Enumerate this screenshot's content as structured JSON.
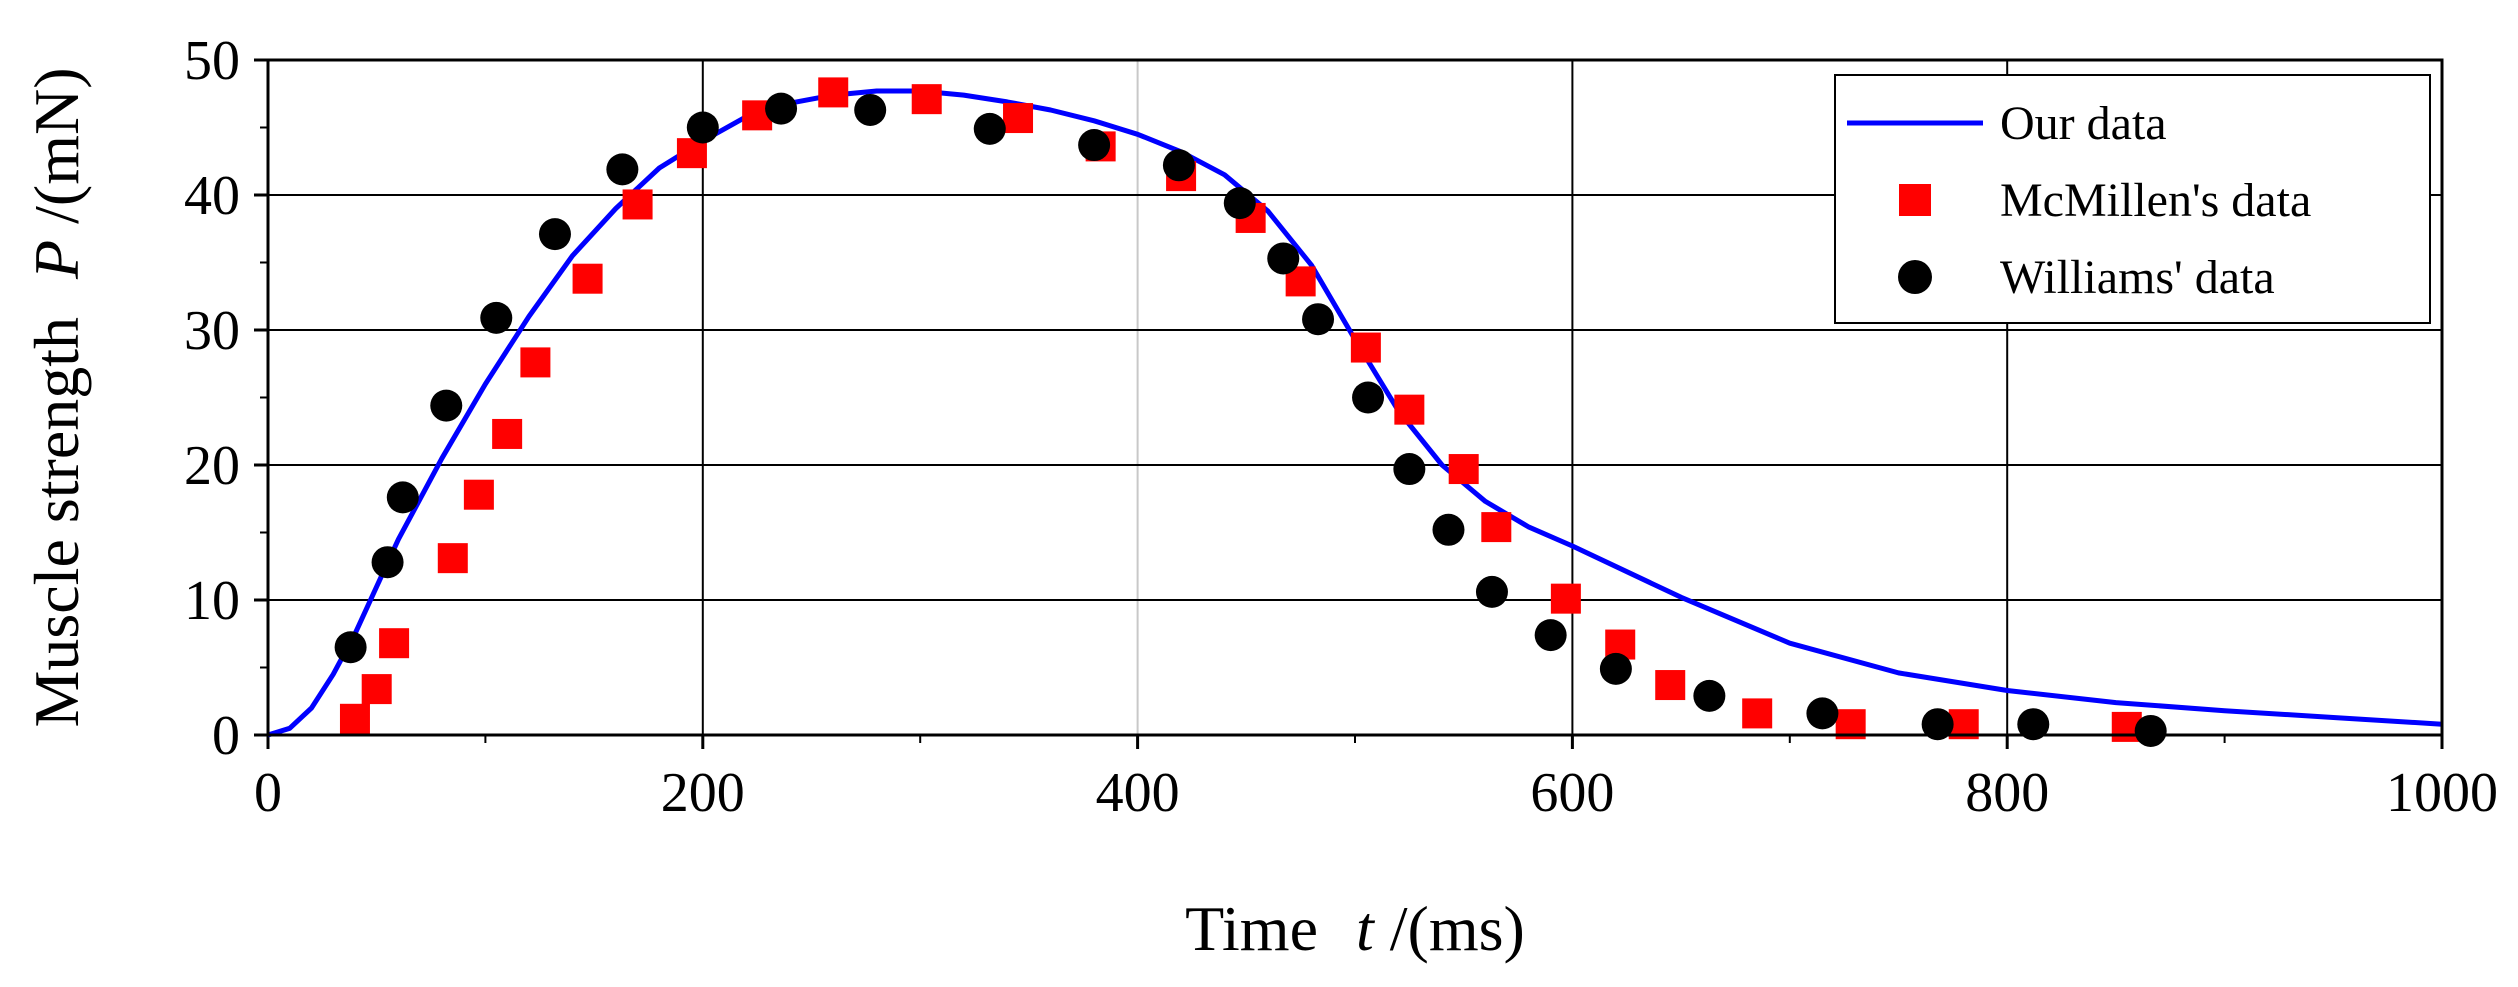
{
  "chart_data": {
    "type": "scatter",
    "title": "",
    "xlabel": {
      "prefix": "Time",
      "var": "t",
      "unit": "/(ms)"
    },
    "ylabel": {
      "prefix": "Muscle strength",
      "var": "P",
      "unit": "/(mN)"
    },
    "xlim": [
      0,
      1000
    ],
    "ylim": [
      0,
      50
    ],
    "xticks": [
      0,
      200,
      400,
      600,
      800,
      1000
    ],
    "yticks": [
      0,
      10,
      20,
      30,
      40,
      50
    ],
    "grid": true,
    "legend_position": "top-right",
    "series": [
      {
        "name": "Our data",
        "kind": "line",
        "color": "#0000ff",
        "x": [
          0,
          10,
          20,
          30,
          40,
          50,
          60,
          80,
          100,
          120,
          140,
          160,
          180,
          200,
          220,
          240,
          260,
          280,
          300,
          320,
          340,
          360,
          380,
          400,
          420,
          440,
          460,
          480,
          500,
          520,
          540,
          560,
          580,
          600,
          650,
          700,
          750,
          800,
          850,
          900,
          950,
          1000
        ],
        "y": [
          0,
          0.5,
          2.0,
          4.5,
          7.5,
          11.0,
          14.5,
          20.5,
          26.0,
          31.0,
          35.5,
          39.0,
          42.0,
          44.0,
          45.8,
          46.8,
          47.4,
          47.7,
          47.7,
          47.4,
          46.9,
          46.3,
          45.5,
          44.5,
          43.2,
          41.5,
          38.8,
          34.8,
          29.3,
          24.0,
          20.0,
          17.3,
          15.4,
          14.0,
          10.2,
          6.8,
          4.6,
          3.3,
          2.4,
          1.8,
          1.3,
          0.8
        ]
      },
      {
        "name": "McMillen's data",
        "kind": "marker",
        "marker": "square",
        "color": "#ff0000",
        "x": [
          40,
          50,
          58,
          85,
          97,
          110,
          123,
          147,
          170,
          195,
          225,
          260,
          303,
          345,
          383,
          420,
          452,
          475,
          505,
          525,
          550,
          565,
          597,
          622,
          645,
          685,
          728,
          780,
          855
        ],
        "y": [
          1.2,
          3.4,
          6.8,
          13.1,
          17.8,
          22.3,
          27.6,
          33.8,
          39.3,
          43.1,
          45.9,
          47.6,
          47.1,
          45.7,
          43.6,
          41.4,
          38.3,
          33.6,
          28.7,
          24.1,
          19.7,
          15.4,
          10.1,
          6.7,
          3.7,
          1.6,
          0.8,
          0.8,
          0.6
        ]
      },
      {
        "name": "Williams' data",
        "kind": "marker",
        "marker": "circle",
        "color": "#000000",
        "x": [
          38,
          55,
          62,
          82,
          105,
          132,
          163,
          200,
          236,
          277,
          332,
          380,
          419,
          447,
          467,
          483,
          506,
          525,
          543,
          563,
          590,
          620,
          663,
          715,
          768,
          812,
          866
        ],
        "y": [
          6.5,
          12.8,
          17.6,
          24.4,
          30.9,
          37.1,
          41.9,
          45.0,
          46.4,
          46.3,
          44.9,
          43.7,
          42.2,
          39.4,
          35.3,
          30.8,
          25.0,
          19.7,
          15.2,
          10.6,
          7.4,
          4.9,
          2.9,
          1.6,
          0.8,
          0.8,
          0.3
        ]
      }
    ]
  }
}
